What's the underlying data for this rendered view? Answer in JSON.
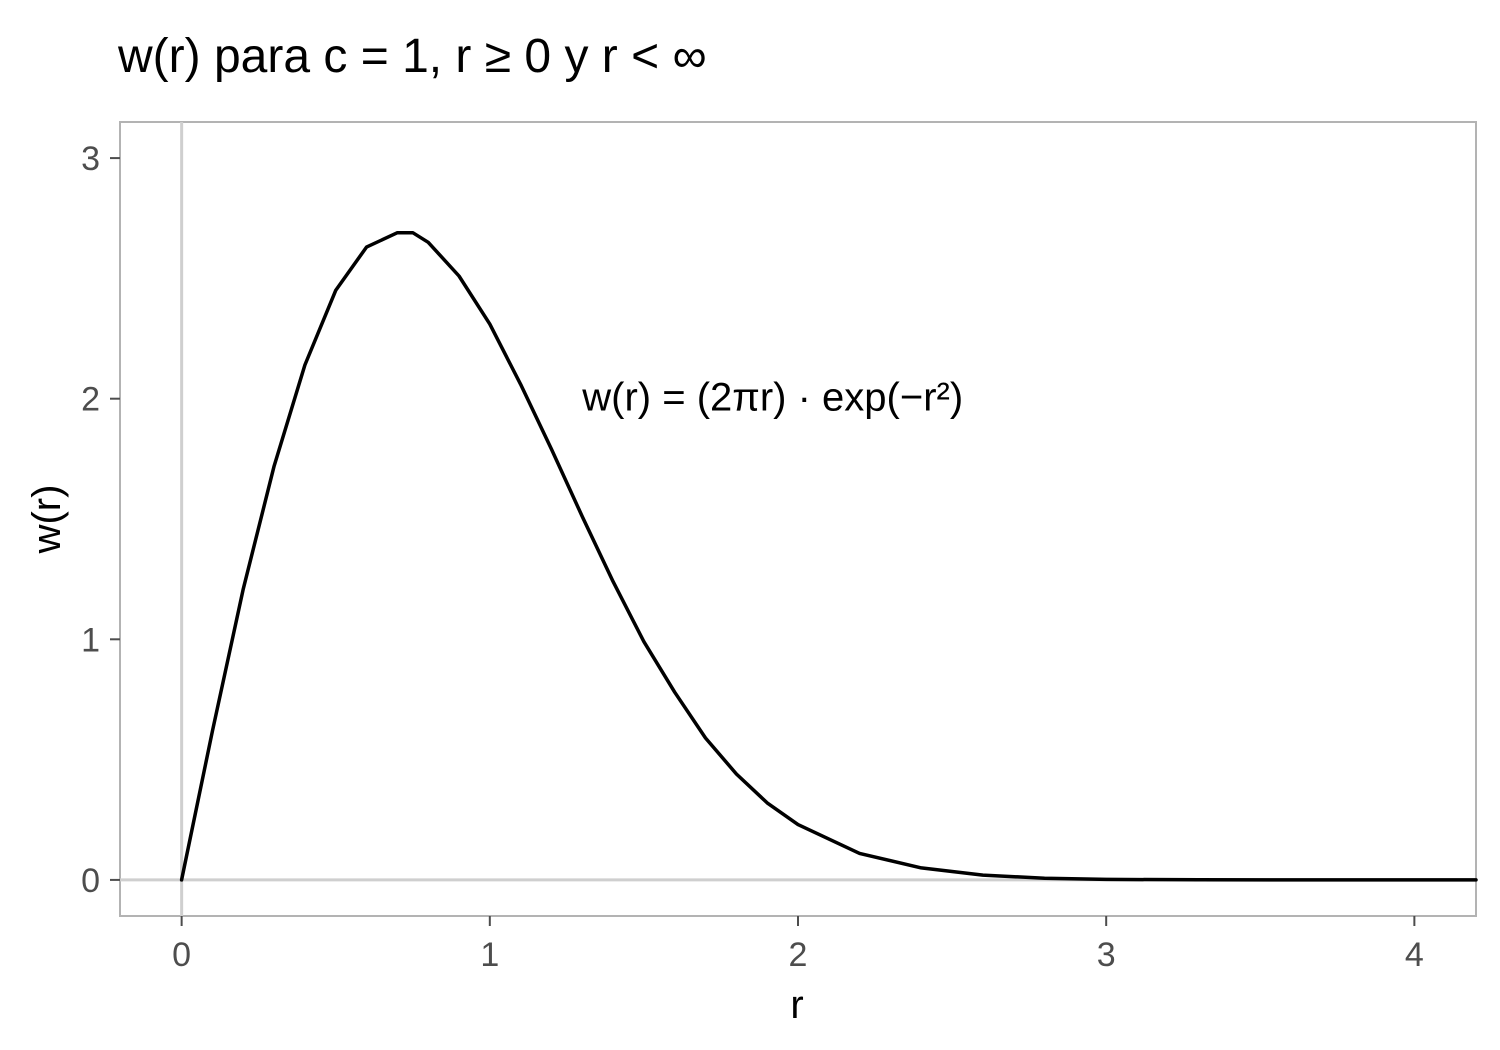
{
  "chart_data": {
    "type": "line",
    "title": "w(r) para c = 1, r ≥ 0 y r < ∞",
    "xlabel": "r",
    "ylabel": "w(r)",
    "xlim": [
      -0.2,
      4.2
    ],
    "ylim": [
      -0.15,
      3.15
    ],
    "x_ticks": [
      0,
      1,
      2,
      3,
      4
    ],
    "y_ticks": [
      0,
      1,
      2,
      3
    ],
    "x_tick_labels": [
      "0",
      "1",
      "2",
      "3",
      "4"
    ],
    "y_tick_labels": [
      "0",
      "1",
      "2",
      "3"
    ],
    "grid": false,
    "reference_lines": {
      "x": 0,
      "y": 0
    },
    "annotation": {
      "text": "w(r) = (2πr) · exp(−r²)",
      "x": 1.3,
      "y": 1.95
    },
    "series": [
      {
        "x": [
          0,
          0.1,
          0.2,
          0.3,
          0.4,
          0.5,
          0.6,
          0.7,
          0.75,
          0.8,
          0.9,
          1.0,
          1.1,
          1.2,
          1.3,
          1.4,
          1.5,
          1.6,
          1.7,
          1.8,
          1.9,
          2.0,
          2.2,
          2.4,
          2.6,
          2.8,
          3.0,
          3.3,
          3.6,
          4.0,
          4.2
        ],
        "y": [
          0,
          0.62,
          1.21,
          1.72,
          2.14,
          2.45,
          2.63,
          2.69,
          2.69,
          2.65,
          2.51,
          2.31,
          2.06,
          1.79,
          1.51,
          1.24,
          0.99,
          0.78,
          0.59,
          0.44,
          0.32,
          0.23,
          0.11,
          0.05,
          0.02,
          0.007,
          0.002,
          0.0004,
          0,
          0,
          0
        ],
        "color": "#000000"
      }
    ]
  }
}
